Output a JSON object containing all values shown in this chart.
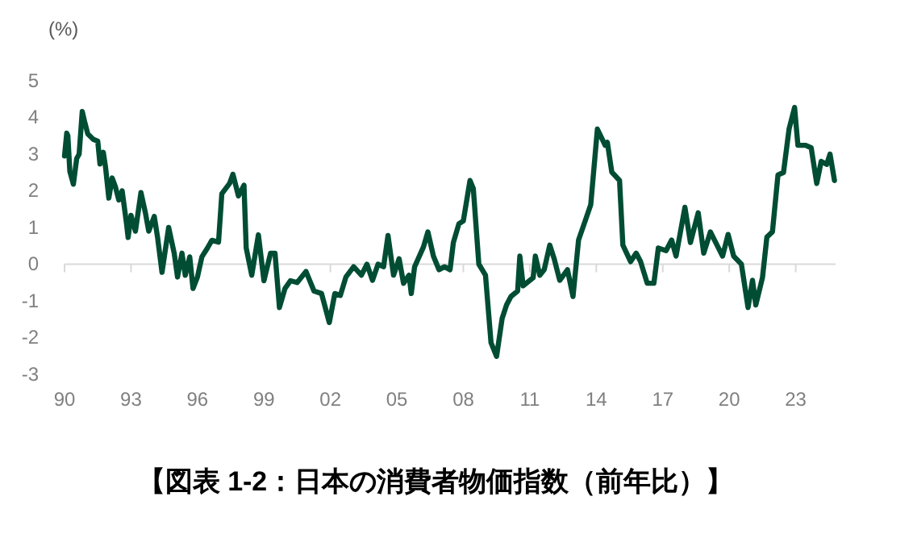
{
  "chart_data": {
    "type": "line",
    "title": "【図表 1-2：日本の消費者物価指数（前年比）】",
    "ylabel": "(%)",
    "xlim": [
      1990,
      2024.8
    ],
    "xticks": [
      {
        "value": 1990,
        "label": "90"
      },
      {
        "value": 1993,
        "label": "93"
      },
      {
        "value": 1996,
        "label": "96"
      },
      {
        "value": 1999,
        "label": "99"
      },
      {
        "value": 2002,
        "label": "02"
      },
      {
        "value": 2005,
        "label": "05"
      },
      {
        "value": 2008,
        "label": "08"
      },
      {
        "value": 2011,
        "label": "11"
      },
      {
        "value": 2014,
        "label": "14"
      },
      {
        "value": 2017,
        "label": "17"
      },
      {
        "value": 2020,
        "label": "20"
      },
      {
        "value": 2023,
        "label": "23"
      }
    ],
    "ylim": [
      -3,
      5
    ],
    "yticks": [
      -3,
      -2,
      -1,
      0,
      1,
      2,
      3,
      4,
      5
    ],
    "marker": "none",
    "line_style": "solid",
    "series": [
      {
        "color": "#004d33",
        "x": [
          1990.0,
          1990.1,
          1990.15,
          1990.24,
          1990.4,
          1990.55,
          1990.66,
          1990.8,
          1990.9,
          1991.05,
          1991.3,
          1991.5,
          1991.6,
          1991.75,
          1991.85,
          1992.0,
          1992.15,
          1992.3,
          1992.45,
          1992.6,
          1992.8,
          1992.87,
          1993.0,
          1993.2,
          1993.45,
          1993.65,
          1993.8,
          1994.05,
          1994.2,
          1994.4,
          1994.7,
          1994.95,
          1995.1,
          1995.3,
          1995.45,
          1995.65,
          1995.8,
          1996.0,
          1996.2,
          1996.45,
          1996.65,
          1996.95,
          1997.1,
          1997.45,
          1997.6,
          1997.85,
          1998.1,
          1998.2,
          1998.45,
          1998.75,
          1999.0,
          1999.3,
          1999.5,
          1999.7,
          1999.95,
          2000.2,
          2000.5,
          2000.9,
          2001.26,
          2001.6,
          2001.95,
          2002.2,
          2002.45,
          2002.7,
          2003.05,
          2003.4,
          2003.65,
          2003.9,
          2004.15,
          2004.4,
          2004.6,
          2004.85,
          2005.1,
          2005.3,
          2005.55,
          2005.65,
          2005.8,
          2006.2,
          2006.4,
          2006.65,
          2006.9,
          2007.15,
          2007.4,
          2007.55,
          2007.8,
          2008.0,
          2008.3,
          2008.45,
          2008.7,
          2009.0,
          2009.25,
          2009.5,
          2009.75,
          2009.95,
          2010.15,
          2010.45,
          2010.55,
          2010.7,
          2011.15,
          2011.25,
          2011.45,
          2011.65,
          2011.9,
          2012.1,
          2012.35,
          2012.7,
          2012.95,
          2013.2,
          2013.5,
          2013.75,
          2014.05,
          2014.4,
          2014.5,
          2014.7,
          2015.05,
          2015.2,
          2015.55,
          2015.8,
          2016.0,
          2016.3,
          2016.6,
          2016.8,
          2017.15,
          2017.4,
          2017.6,
          2018.0,
          2018.25,
          2018.6,
          2018.85,
          2019.15,
          2019.45,
          2019.7,
          2019.95,
          2020.2,
          2020.55,
          2020.85,
          2021.05,
          2021.2,
          2021.5,
          2021.7,
          2021.95,
          2022.2,
          2022.45,
          2022.7,
          2022.95,
          2023.1,
          2023.45,
          2023.7,
          2023.95,
          2024.15,
          2024.4,
          2024.55,
          2024.75
        ],
        "values": [
          2.95,
          3.57,
          3.5,
          2.53,
          2.18,
          2.88,
          3.0,
          4.16,
          3.9,
          3.55,
          3.4,
          3.35,
          2.73,
          3.05,
          2.65,
          1.8,
          2.35,
          2.1,
          1.75,
          2.0,
          1.1,
          0.73,
          1.33,
          0.9,
          1.95,
          1.4,
          0.9,
          1.3,
          0.73,
          -0.22,
          1.0,
          0.3,
          -0.35,
          0.3,
          -0.3,
          0.2,
          -0.66,
          -0.35,
          0.2,
          0.44,
          0.65,
          0.6,
          1.92,
          2.2,
          2.45,
          1.86,
          2.15,
          0.44,
          -0.3,
          0.8,
          -0.45,
          0.3,
          0.3,
          -1.18,
          -0.66,
          -0.45,
          -0.5,
          -0.2,
          -0.73,
          -0.8,
          -1.59,
          -0.8,
          -0.85,
          -0.35,
          -0.07,
          -0.3,
          0.0,
          -0.44,
          0.0,
          -0.07,
          0.78,
          -0.3,
          0.15,
          -0.52,
          -0.3,
          -0.8,
          -0.07,
          0.47,
          0.88,
          0.22,
          -0.15,
          -0.07,
          -0.15,
          0.59,
          1.1,
          1.18,
          2.28,
          2.06,
          0.0,
          -0.3,
          -2.14,
          -2.51,
          -1.48,
          -1.11,
          -0.88,
          -0.73,
          0.22,
          -0.59,
          -0.37,
          0.22,
          -0.3,
          -0.15,
          0.52,
          0.15,
          -0.44,
          -0.15,
          -0.88,
          0.66,
          1.18,
          1.62,
          3.68,
          3.24,
          3.32,
          2.51,
          2.28,
          0.52,
          0.07,
          0.3,
          0.07,
          -0.52,
          -0.52,
          0.44,
          0.37,
          0.66,
          0.22,
          1.55,
          0.59,
          1.4,
          0.3,
          0.88,
          0.52,
          0.22,
          0.81,
          0.22,
          0.0,
          -1.18,
          -0.44,
          -1.11,
          -0.37,
          0.74,
          0.88,
          2.43,
          2.5,
          3.68,
          4.27,
          3.24,
          3.24,
          3.17,
          2.2,
          2.8,
          2.72,
          3.0,
          2.28
        ]
      }
    ]
  }
}
